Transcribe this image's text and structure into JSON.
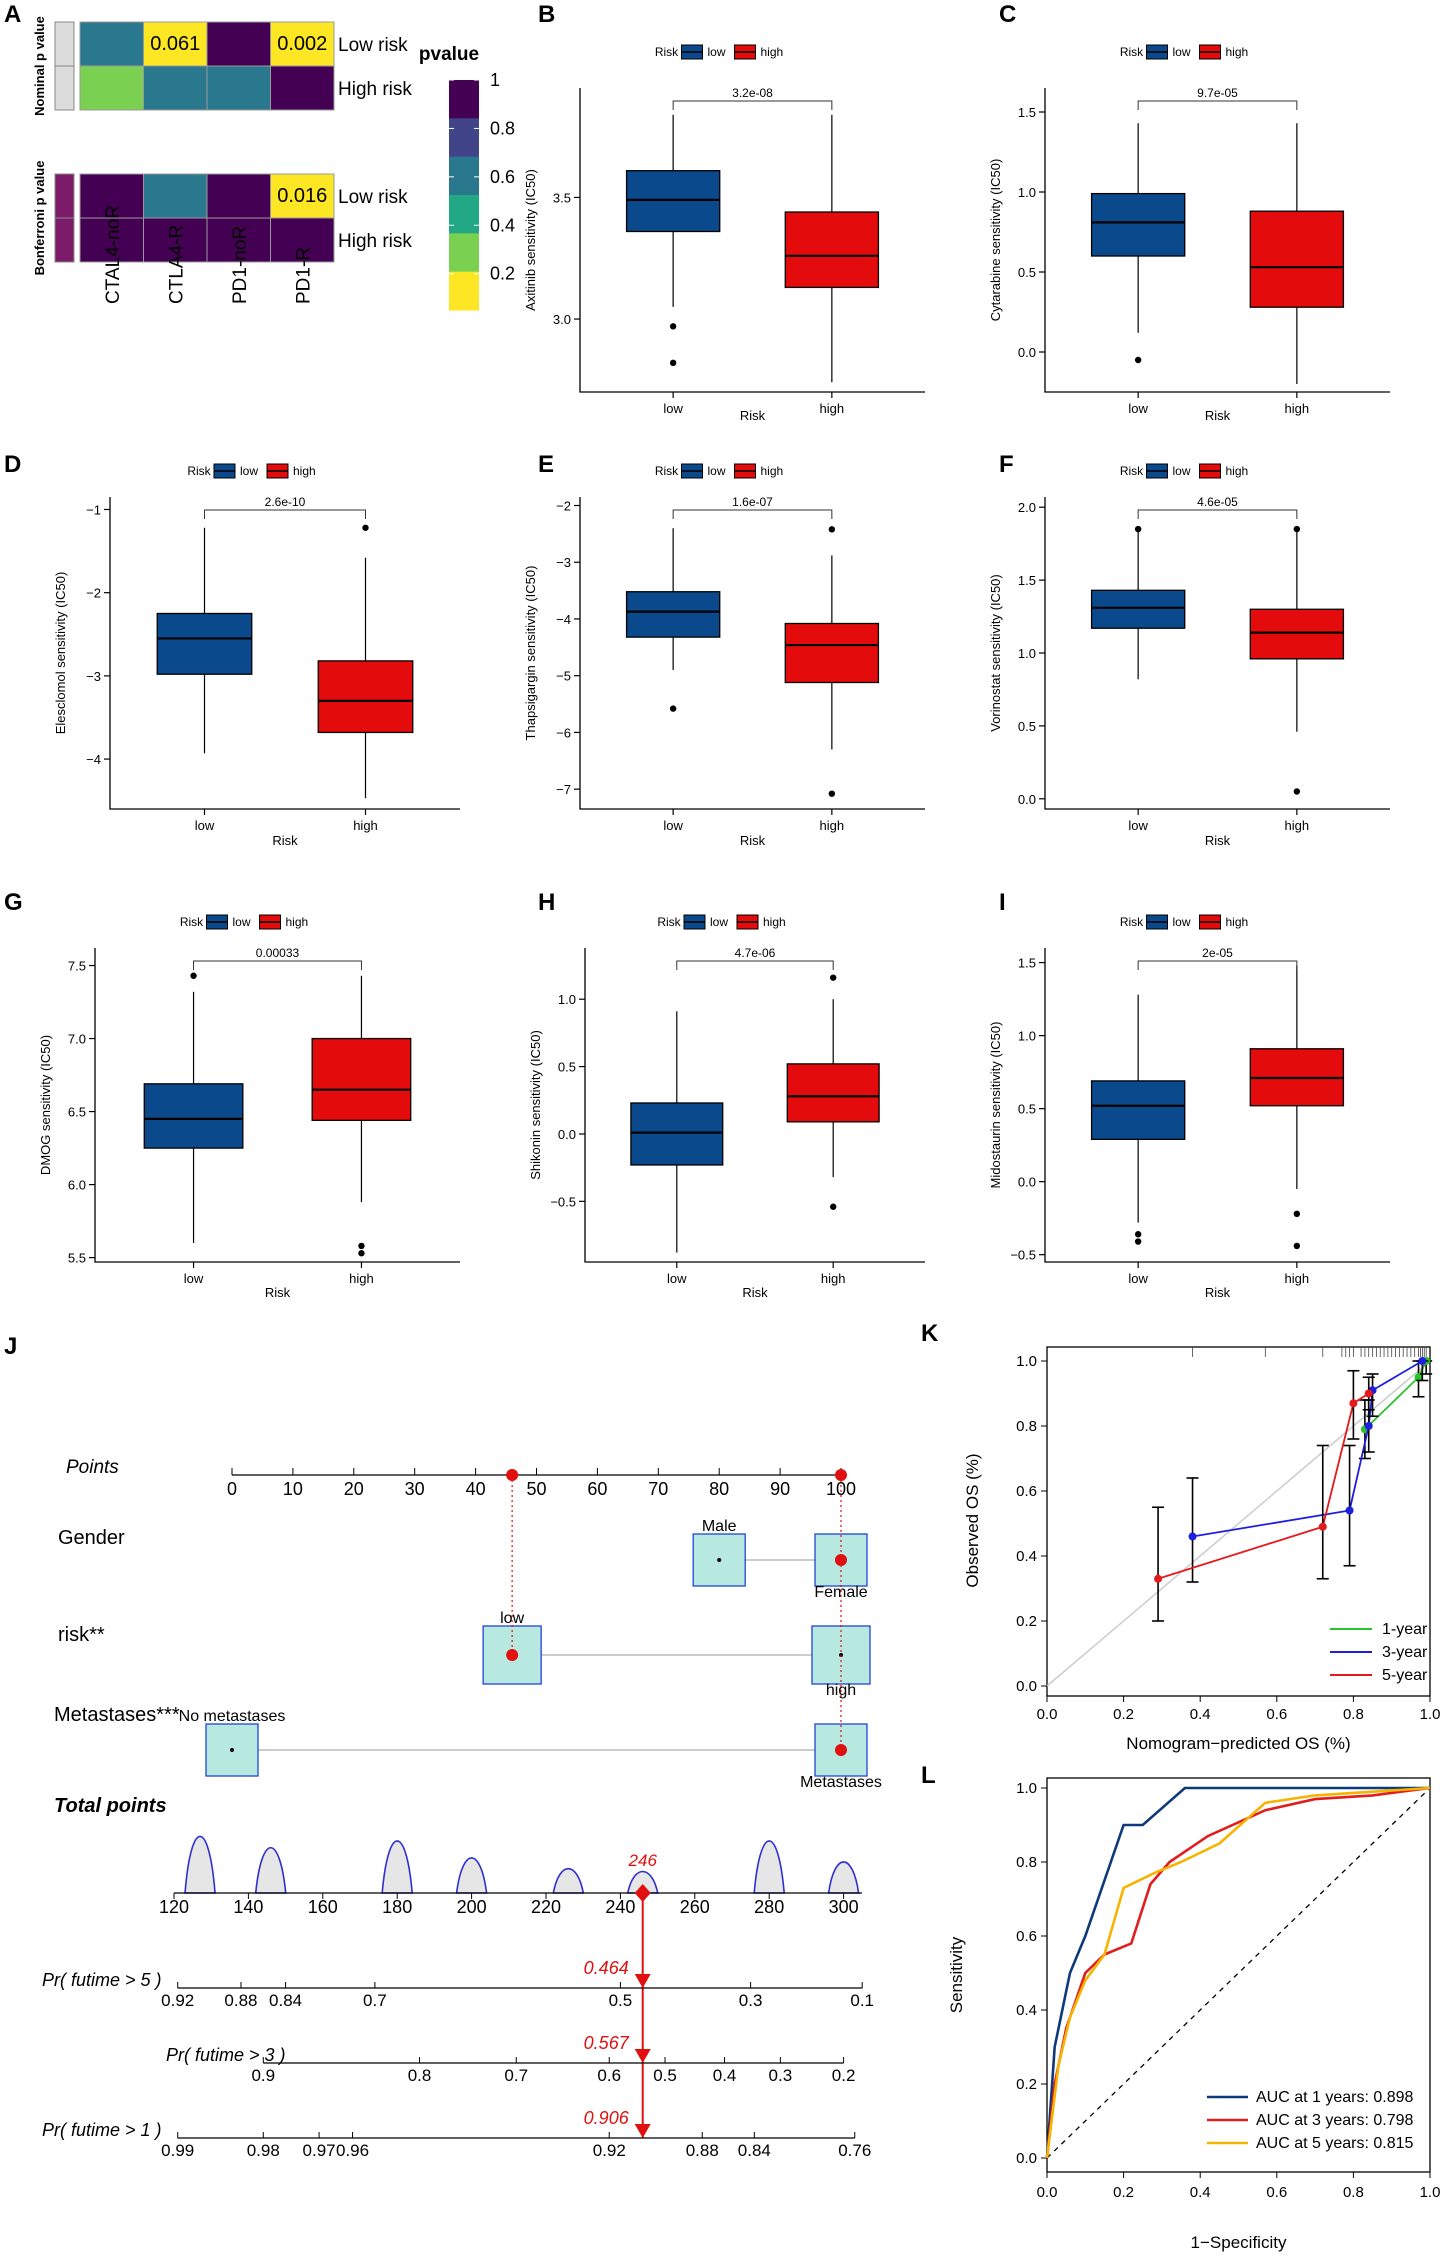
{
  "figure": {
    "panel_letters": [
      "A",
      "B",
      "C",
      "D",
      "E",
      "F",
      "G",
      "H",
      "I",
      "J",
      "K",
      "L"
    ]
  },
  "colors": {
    "low": "#0a4a8c",
    "high": "#e30b0b",
    "viridis": [
      "#fde725",
      "#7ad151",
      "#22a884",
      "#2a788e",
      "#414487",
      "#440154"
    ],
    "roc1": "#0c3a7a",
    "roc3": "#e11d1d",
    "roc5": "#f5b400",
    "cal1": "#29c429",
    "cal3": "#1f1fe0",
    "cal5": "#e41a1c"
  },
  "chart_data": [
    {
      "id": "A",
      "type": "heatmap",
      "legend_title": "pvalue",
      "legend_ticks": [
        "1",
        "0.8",
        "0.6",
        "0.4",
        "0.2"
      ],
      "columns": [
        "CTAL4-noR",
        "CTLA4-R",
        "PD1-noR",
        "PD1-R"
      ],
      "row_groups": [
        {
          "label": "Nominal p value",
          "rows": [
            {
              "label": "Low risk",
              "values": [
                0.64,
                0.061,
                0.95,
                0.002
              ],
              "texts": [
                "",
                "0.061",
                "",
                "0.002"
              ]
            },
            {
              "label": "High risk",
              "values": [
                0.3,
                0.63,
                0.5,
                0.95
              ],
              "texts": [
                "",
                "",
                "",
                ""
              ]
            }
          ]
        },
        {
          "label": "Bonferroni p value",
          "rows": [
            {
              "label": "Low risk",
              "values": [
                1,
                0.5,
                1,
                0.016
              ],
              "texts": [
                "",
                "",
                "",
                "0.016"
              ]
            },
            {
              "label": "High risk",
              "values": [
                1,
                1,
                1,
                1
              ],
              "texts": [
                "",
                "",
                "",
                ""
              ]
            }
          ]
        }
      ]
    },
    {
      "id": "B",
      "type": "boxplot",
      "legend_title": "Risk",
      "legend_labels": [
        "low",
        "high"
      ],
      "ylabel": "Axitinib sensitivity (IC50)",
      "xlabel": "Risk",
      "categories": [
        "low",
        "high"
      ],
      "ylim": [
        2.7,
        3.95
      ],
      "yticks": [
        3.0,
        3.5
      ],
      "ytick_labels": [
        "3.0",
        "3.5"
      ],
      "pvalue": "3.2e-08",
      "boxes": [
        {
          "min": 3.05,
          "q1": 3.36,
          "median": 3.49,
          "q3": 3.61,
          "max": 3.84,
          "outliers": [
            2.97,
            2.82
          ]
        },
        {
          "min": 2.74,
          "q1": 3.13,
          "median": 3.26,
          "q3": 3.44,
          "max": 3.84,
          "outliers": []
        }
      ]
    },
    {
      "id": "C",
      "type": "boxplot",
      "legend_title": "Risk",
      "legend_labels": [
        "low",
        "high"
      ],
      "ylabel": "Cytarabine sensitivity (IC50)",
      "xlabel": "Risk",
      "categories": [
        "low",
        "high"
      ],
      "ylim": [
        -0.25,
        1.65
      ],
      "yticks": [
        0.0,
        0.5,
        1.0,
        1.5
      ],
      "ytick_labels": [
        "0.0",
        "0.5",
        "1.0",
        "1.5"
      ],
      "pvalue": "9.7e-05",
      "boxes": [
        {
          "min": 0.12,
          "q1": 0.6,
          "median": 0.81,
          "q3": 0.99,
          "max": 1.43,
          "outliers": [
            -0.05
          ]
        },
        {
          "min": -0.2,
          "q1": 0.28,
          "median": 0.53,
          "q3": 0.88,
          "max": 1.43,
          "outliers": []
        }
      ]
    },
    {
      "id": "D",
      "type": "boxplot",
      "legend_title": "Risk",
      "legend_labels": [
        "low",
        "high"
      ],
      "ylabel": "Elesclomol sensitivity (IC50)",
      "xlabel": "Risk",
      "categories": [
        "low",
        "high"
      ],
      "ylim": [
        -4.6,
        -0.85
      ],
      "yticks": [
        -4,
        -3,
        -2,
        -1
      ],
      "ytick_labels": [
        "−4",
        "−3",
        "−2",
        "−1"
      ],
      "pvalue": "2.6e-10",
      "boxes": [
        {
          "min": -3.93,
          "q1": -2.98,
          "median": -2.55,
          "q3": -2.25,
          "max": -1.22,
          "outliers": []
        },
        {
          "min": -4.47,
          "q1": -3.68,
          "median": -3.3,
          "q3": -2.82,
          "max": -1.58,
          "outliers": [
            -1.22
          ]
        }
      ]
    },
    {
      "id": "E",
      "type": "boxplot",
      "legend_title": "Risk",
      "legend_labels": [
        "low",
        "high"
      ],
      "ylabel": "Thapsigargin sensitivity (IC50)",
      "xlabel": "Risk",
      "categories": [
        "low",
        "high"
      ],
      "ylim": [
        -7.35,
        -1.85
      ],
      "yticks": [
        -7,
        -6,
        -5,
        -4,
        -3,
        -2
      ],
      "ytick_labels": [
        "−7",
        "−6",
        "−5",
        "−4",
        "−3",
        "−2"
      ],
      "pvalue": "1.6e-07",
      "boxes": [
        {
          "min": -4.9,
          "q1": -4.32,
          "median": -3.87,
          "q3": -3.52,
          "max": -2.4,
          "outliers": [
            -5.58
          ]
        },
        {
          "min": -6.3,
          "q1": -5.12,
          "median": -4.46,
          "q3": -4.08,
          "max": -2.88,
          "outliers": [
            -2.42,
            -7.08
          ]
        }
      ]
    },
    {
      "id": "F",
      "type": "boxplot",
      "legend_title": "Risk",
      "legend_labels": [
        "low",
        "high"
      ],
      "ylabel": "Vorinostat sensitivity (IC50)",
      "xlabel": "Risk",
      "categories": [
        "low",
        "high"
      ],
      "ylim": [
        -0.07,
        2.07
      ],
      "yticks": [
        0.0,
        0.5,
        1.0,
        1.5,
        2.0
      ],
      "ytick_labels": [
        "0.0",
        "0.5",
        "1.0",
        "1.5",
        "2.0"
      ],
      "pvalue": "4.6e-05",
      "boxes": [
        {
          "min": 0.82,
          "q1": 1.17,
          "median": 1.31,
          "q3": 1.43,
          "max": 1.85,
          "outliers": [
            1.85
          ]
        },
        {
          "min": 0.46,
          "q1": 0.96,
          "median": 1.14,
          "q3": 1.3,
          "max": 1.85,
          "outliers": [
            1.85,
            0.05
          ]
        }
      ]
    },
    {
      "id": "G",
      "type": "boxplot",
      "legend_title": "Risk",
      "legend_labels": [
        "low",
        "high"
      ],
      "ylabel": "DMOG sensitivity (IC50)",
      "xlabel": "Risk",
      "categories": [
        "low",
        "high"
      ],
      "ylim": [
        5.47,
        7.62
      ],
      "yticks": [
        5.5,
        6.0,
        6.5,
        7.0,
        7.5
      ],
      "ytick_labels": [
        "5.5",
        "6.0",
        "6.5",
        "7.0",
        "7.5"
      ],
      "pvalue": "0.00033",
      "boxes": [
        {
          "min": 5.6,
          "q1": 6.25,
          "median": 6.45,
          "q3": 6.69,
          "max": 7.32,
          "outliers": [
            7.43
          ]
        },
        {
          "min": 5.88,
          "q1": 6.44,
          "median": 6.65,
          "q3": 7.0,
          "max": 7.43,
          "outliers": [
            5.58,
            5.53
          ]
        }
      ]
    },
    {
      "id": "H",
      "type": "boxplot",
      "legend_title": "Risk",
      "legend_labels": [
        "low",
        "high"
      ],
      "ylabel": "Shikonin sensitivity (IC50)",
      "xlabel": "Risk",
      "categories": [
        "low",
        "high"
      ],
      "ylim": [
        -0.95,
        1.38
      ],
      "yticks": [
        -0.5,
        0.0,
        0.5,
        1.0
      ],
      "ytick_labels": [
        "−0.5",
        "0.0",
        "0.5",
        "1.0"
      ],
      "pvalue": "4.7e-06",
      "boxes": [
        {
          "min": -0.88,
          "q1": -0.23,
          "median": 0.01,
          "q3": 0.23,
          "max": 0.91,
          "outliers": []
        },
        {
          "min": -0.32,
          "q1": 0.09,
          "median": 0.28,
          "q3": 0.52,
          "max": 1.0,
          "outliers": [
            1.16,
            -0.54
          ]
        }
      ]
    },
    {
      "id": "I",
      "type": "boxplot",
      "legend_title": "Risk",
      "legend_labels": [
        "low",
        "high"
      ],
      "ylabel": "Midostaurin sensitivity (IC50)",
      "xlabel": "Risk",
      "categories": [
        "low",
        "high"
      ],
      "ylim": [
        -0.55,
        1.6
      ],
      "yticks": [
        -0.5,
        0.0,
        0.5,
        1.0,
        1.5
      ],
      "ytick_labels": [
        "−0.5",
        "0.0",
        "0.5",
        "1.0",
        "1.5"
      ],
      "pvalue": "2e-05",
      "boxes": [
        {
          "min": -0.28,
          "q1": 0.29,
          "median": 0.52,
          "q3": 0.69,
          "max": 1.28,
          "outliers": [
            -0.36,
            -0.41
          ]
        },
        {
          "min": -0.05,
          "q1": 0.52,
          "median": 0.71,
          "q3": 0.91,
          "max": 1.48,
          "outliers": [
            -0.22,
            -0.44
          ]
        }
      ]
    },
    {
      "id": "J",
      "type": "nomogram",
      "points_label": "Points",
      "points_ticks": [
        0,
        10,
        20,
        30,
        40,
        50,
        60,
        70,
        80,
        90,
        100
      ],
      "selected_points": [
        46,
        100
      ],
      "variables": [
        {
          "label": "Gender",
          "levels": [
            {
              "name": "Male",
              "points": 80,
              "label_pos": "above"
            },
            {
              "name": "Female",
              "points": 100,
              "label_pos": "below",
              "selected": true
            }
          ]
        },
        {
          "label": "risk**",
          "levels": [
            {
              "name": "low",
              "points": 46,
              "label_pos": "above",
              "selected": true
            },
            {
              "name": "high",
              "points": 100,
              "label_pos": "below"
            }
          ]
        },
        {
          "label": "Metastases***",
          "levels": [
            {
              "name": "No metastases",
              "points": 0,
              "label_pos": "above"
            },
            {
              "name": "Metastases",
              "points": 100,
              "label_pos": "below",
              "selected": true
            }
          ]
        }
      ],
      "total_label": "Total points",
      "total_ticks": [
        120,
        140,
        160,
        180,
        200,
        220,
        240,
        260,
        280,
        300
      ],
      "total_value": 246,
      "total_value_label": "246",
      "total_peaks": [
        {
          "x": 127,
          "h": 1.0
        },
        {
          "x": 146,
          "h": 0.8
        },
        {
          "x": 180,
          "h": 0.92
        },
        {
          "x": 200,
          "h": 0.62
        },
        {
          "x": 226,
          "h": 0.43
        },
        {
          "x": 246,
          "h": 0.38
        },
        {
          "x": 280,
          "h": 0.92
        },
        {
          "x": 300,
          "h": 0.55
        }
      ],
      "prob_rows": [
        {
          "label": "Pr( futime > 5 )",
          "value_label": "0.464",
          "ticks": [
            {
              "text": "0.92",
              "at": 121
            },
            {
              "text": "0.88",
              "at": 138
            },
            {
              "text": "0.84",
              "at": 150
            },
            {
              "text": "0.7",
              "at": 174
            },
            {
              "text": "0.5",
              "at": 240
            },
            {
              "text": "0.3",
              "at": 275
            },
            {
              "text": "0.1",
              "at": 305
            }
          ]
        },
        {
          "label": "Pr( futime > 3 )",
          "value_label": "0.567",
          "ticks": [
            {
              "text": "0.9",
              "at": 144
            },
            {
              "text": "0.8",
              "at": 186
            },
            {
              "text": "0.7",
              "at": 212
            },
            {
              "text": "0.6",
              "at": 237
            },
            {
              "text": "0.5",
              "at": 252
            },
            {
              "text": "0.4",
              "at": 268
            },
            {
              "text": "0.3",
              "at": 283
            },
            {
              "text": "0.2",
              "at": 300
            }
          ]
        },
        {
          "label": "Pr( futime > 1 )",
          "value_label": "0.906",
          "ticks": [
            {
              "text": "0.99",
              "at": 121
            },
            {
              "text": "0.98",
              "at": 144
            },
            {
              "text": "0.97",
              "at": 159
            },
            {
              "text": "0.96",
              "at": 168
            },
            {
              "text": "0.92",
              "at": 237
            },
            {
              "text": "0.88",
              "at": 262
            },
            {
              "text": "0.84",
              "at": 276
            },
            {
              "text": "0.76",
              "at": 303
            }
          ]
        }
      ]
    },
    {
      "id": "K",
      "type": "line",
      "xlabel": "Nomogram−predicted OS (%)",
      "ylabel": "Observed OS (%)",
      "xlim": [
        0,
        1
      ],
      "ylim": [
        0,
        1
      ],
      "ticks": [
        "0.0",
        "0.2",
        "0.4",
        "0.6",
        "0.8",
        "1.0"
      ],
      "rug_x": [
        0.38,
        0.57,
        0.72,
        0.77,
        0.78,
        0.79,
        0.8,
        0.82,
        0.83,
        0.84,
        0.85,
        0.86,
        0.87,
        0.88,
        0.89,
        0.9,
        0.91,
        0.92,
        0.93,
        0.94,
        0.95,
        0.96,
        0.97,
        0.975,
        0.98,
        0.985,
        0.99
      ],
      "series": [
        {
          "name": "1-year",
          "x": [
            0.83,
            0.97,
            0.99
          ],
          "y": [
            0.79,
            0.95,
            1.0
          ],
          "lo": [
            0.7,
            0.89,
            0.96
          ],
          "hi": [
            0.88,
            1.0,
            1.0
          ]
        },
        {
          "name": "3-year",
          "x": [
            0.38,
            0.79,
            0.84,
            0.85,
            0.98
          ],
          "y": [
            0.46,
            0.54,
            0.8,
            0.91,
            1.0
          ],
          "lo": [
            0.32,
            0.37,
            0.72,
            0.83,
            0.94
          ],
          "hi": [
            0.64,
            0.74,
            0.88,
            0.96,
            1.0
          ]
        },
        {
          "name": "5-year",
          "x": [
            0.29,
            0.72,
            0.8,
            0.84
          ],
          "y": [
            0.33,
            0.49,
            0.87,
            0.9
          ],
          "lo": [
            0.2,
            0.33,
            0.76,
            0.85
          ],
          "hi": [
            0.55,
            0.74,
            0.97,
            0.95
          ]
        }
      ]
    },
    {
      "id": "L",
      "type": "line",
      "xlabel": "1−Specificity",
      "ylabel": "Sensitivity",
      "xlim": [
        0,
        1
      ],
      "ylim": [
        0,
        1
      ],
      "ticks": [
        "0.0",
        "0.2",
        "0.4",
        "0.6",
        "0.8",
        "1.0"
      ],
      "series": [
        {
          "name": "AUC at 1 years: 0.898",
          "x": [
            0,
            0.02,
            0.06,
            0.08,
            0.1,
            0.2,
            0.25,
            0.36,
            0.45,
            0.6,
            0.8,
            1.0
          ],
          "y": [
            0,
            0.3,
            0.5,
            0.55,
            0.6,
            0.9,
            0.9,
            1.0,
            1.0,
            1.0,
            1.0,
            1.0
          ]
        },
        {
          "name": "AUC at 3 years: 0.798",
          "x": [
            0,
            0.02,
            0.05,
            0.1,
            0.15,
            0.22,
            0.27,
            0.32,
            0.42,
            0.57,
            0.7,
            0.85,
            1.0
          ],
          "y": [
            0,
            0.2,
            0.35,
            0.5,
            0.55,
            0.58,
            0.74,
            0.8,
            0.87,
            0.94,
            0.97,
            0.98,
            1.0
          ]
        },
        {
          "name": "AUC at 5 years: 0.815",
          "x": [
            0,
            0.03,
            0.06,
            0.1,
            0.15,
            0.2,
            0.28,
            0.35,
            0.45,
            0.57,
            0.7,
            0.85,
            1.0
          ],
          "y": [
            0,
            0.25,
            0.38,
            0.48,
            0.55,
            0.73,
            0.77,
            0.8,
            0.85,
            0.96,
            0.98,
            0.99,
            1.0
          ]
        }
      ]
    }
  ]
}
